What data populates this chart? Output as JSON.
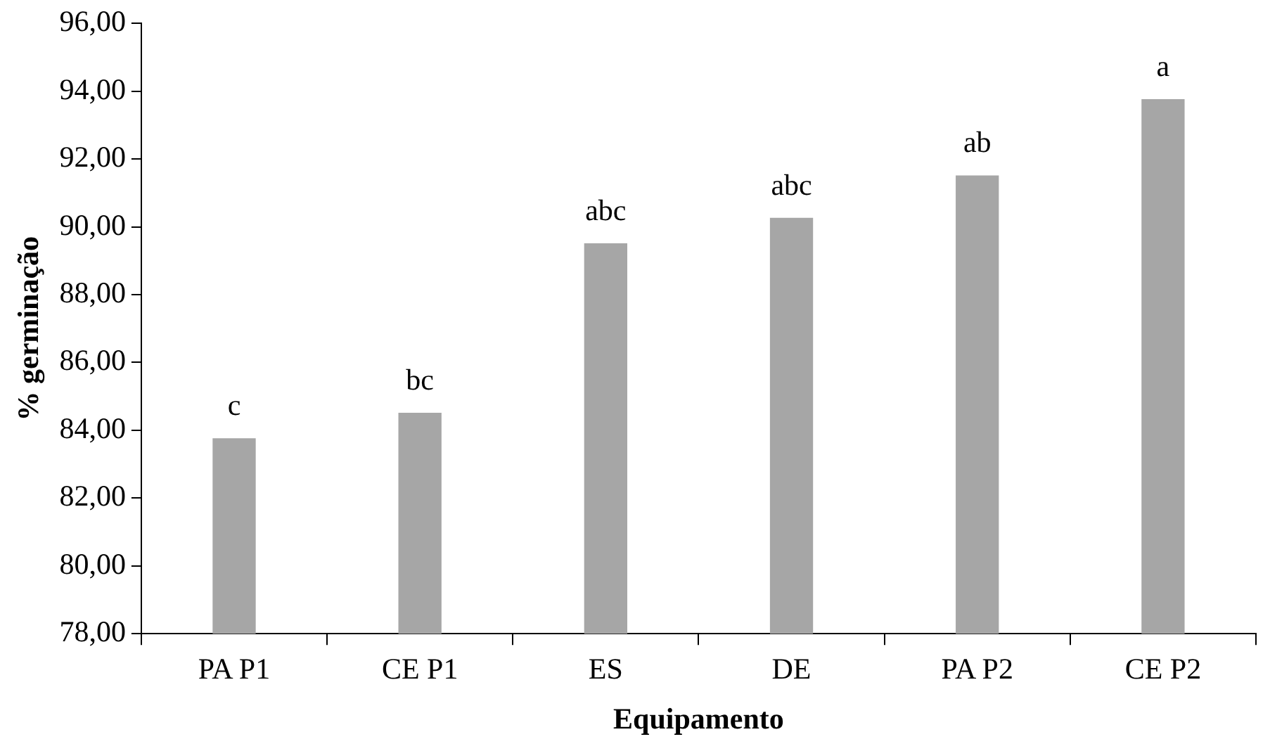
{
  "chart_data": {
    "type": "bar",
    "xlabel": "Equipamento",
    "ylabel": "% germinação",
    "categories": [
      "PA P1",
      "CE P1",
      "ES",
      "DE",
      "PA P2",
      "CE P2"
    ],
    "values": [
      83.75,
      84.5,
      89.5,
      90.25,
      91.5,
      93.75
    ],
    "color": "#a6a6a6",
    "ylim": [
      78,
      96
    ],
    "yticks": [
      {
        "value": 78,
        "label": "78,00"
      },
      {
        "value": 80,
        "label": "80,00"
      },
      {
        "value": 82,
        "label": "82,00"
      },
      {
        "value": 84,
        "label": "84,00"
      },
      {
        "value": 86,
        "label": "86,00"
      },
      {
        "value": 88,
        "label": "88,00"
      },
      {
        "value": 90,
        "label": "90,00"
      },
      {
        "value": 92,
        "label": "92,00"
      },
      {
        "value": 94,
        "label": "94,00"
      },
      {
        "value": 96,
        "label": "96,00"
      }
    ],
    "grid": false,
    "legend": false,
    "annotations": [
      {
        "text": "c",
        "x": "PA P1",
        "y": 83.75
      },
      {
        "text": "bc",
        "x": "CE P1",
        "y": 84.5
      },
      {
        "text": "abc",
        "x": "ES",
        "y": 89.5
      },
      {
        "text": "abc",
        "x": "DE",
        "y": 90.25
      },
      {
        "text": "ab",
        "x": "PA P2",
        "y": 91.5
      },
      {
        "text": "a",
        "x": "CE P2",
        "y": 93.75
      }
    ]
  }
}
